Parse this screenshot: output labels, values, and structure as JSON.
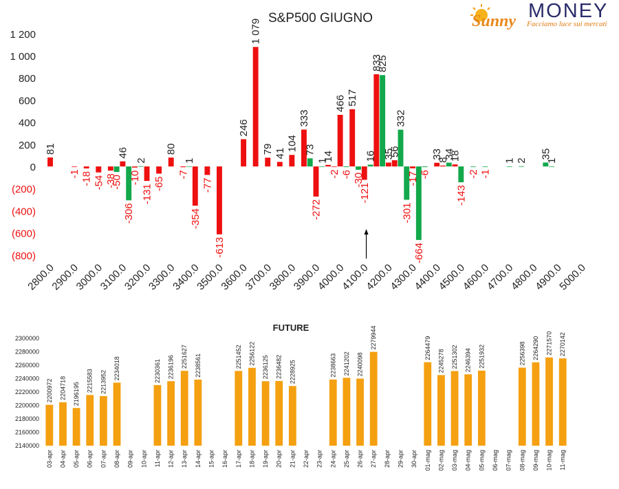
{
  "brand": {
    "logo_text": "Sunny",
    "name": "MONEY",
    "tagline": "Facciamo luce sui mercati"
  },
  "colors": {
    "call": "#ee1010",
    "put": "#12a84b",
    "future": "#f4a011",
    "text": "#222222",
    "negative_text": "#ee1010"
  },
  "chart_data": [
    {
      "type": "bar",
      "title": "S&P500 GIUGNO",
      "ylim": [
        -800,
        1200
      ],
      "yticks": [
        -800,
        -600,
        -400,
        -200,
        0,
        200,
        400,
        600,
        800,
        1000,
        1200
      ],
      "ytick_labels": [
        "(800)",
        "(600)",
        "(400)",
        "(200)",
        "0",
        "200",
        "400",
        "600",
        "800",
        "1 000",
        "1 200"
      ],
      "xticks": [
        "2800.0",
        "2900.0",
        "3000.0",
        "3100.0",
        "3200.0",
        "3300.0",
        "3400.0",
        "3500.0",
        "3600.0",
        "3700.0",
        "3800.0",
        "3900.0",
        "4000.0",
        "4100.0",
        "4200.0",
        "4300.0",
        "4400.0",
        "4500.0",
        "4600.0",
        "4700.0",
        "4800.0",
        "4900.0",
        "5000.0"
      ],
      "xlim": [
        2800,
        5000
      ],
      "bar_width": 25,
      "annotation": "arrow at 4125",
      "arrow_x": 4125,
      "series": [
        {
          "color": "#ee1010",
          "points": [
            {
              "x": 2800,
              "v": 81,
              "label": "81"
            },
            {
              "x": 2900,
              "v": -1,
              "label": "-1"
            },
            {
              "x": 2950,
              "v": -18,
              "label": "-18"
            },
            {
              "x": 3000,
              "v": -54,
              "label": "-54"
            },
            {
              "x": 3050,
              "v": -38,
              "label": "-38"
            },
            {
              "x": 3100,
              "v": 46,
              "label": "46"
            },
            {
              "x": 3150,
              "v": -10,
              "label": "-10"
            },
            {
              "x": 3200,
              "v": -131,
              "label": "-131"
            },
            {
              "x": 3250,
              "v": -65,
              "label": "-65"
            },
            {
              "x": 3300,
              "v": 80,
              "label": "80"
            },
            {
              "x": 3350,
              "v": -7,
              "label": "-7"
            },
            {
              "x": 3400,
              "v": -354,
              "label": "-354"
            },
            {
              "x": 3450,
              "v": -77,
              "label": "-77"
            },
            {
              "x": 3500,
              "v": -613,
              "label": "-613"
            },
            {
              "x": 3600,
              "v": 246,
              "label": "246"
            },
            {
              "x": 3650,
              "v": 1079,
              "label": "1 079"
            },
            {
              "x": 3700,
              "v": 79,
              "label": "79"
            },
            {
              "x": 3750,
              "v": 41,
              "label": "41"
            },
            {
              "x": 3800,
              "v": 104,
              "label": "104"
            },
            {
              "x": 3850,
              "v": 333,
              "label": "333"
            },
            {
              "x": 3900,
              "v": -272,
              "label": "-272"
            },
            {
              "x": 3950,
              "v": 14,
              "label": "14"
            },
            {
              "x": 3975,
              "v": -2,
              "label": "-2"
            },
            {
              "x": 4000,
              "v": 466,
              "label": "466"
            },
            {
              "x": 4050,
              "v": 517,
              "label": "517"
            },
            {
              "x": 4100,
              "v": -121,
              "label": "-121"
            },
            {
              "x": 4150,
              "v": 833,
              "label": "833"
            },
            {
              "x": 4200,
              "v": 35,
              "label": "35"
            },
            {
              "x": 4225,
              "v": 56,
              "label": "56"
            },
            {
              "x": 4300,
              "v": -17,
              "label": "-17"
            },
            {
              "x": 4400,
              "v": 33,
              "label": "33"
            },
            {
              "x": 4425,
              "v": 8,
              "label": "8"
            },
            {
              "x": 4475,
              "v": 18,
              "label": "18"
            }
          ]
        },
        {
          "color": "#12a84b",
          "points": [
            {
              "x": 3075,
              "v": -50,
              "label": "-50"
            },
            {
              "x": 3125,
              "v": -306,
              "label": "-306"
            },
            {
              "x": 3175,
              "v": 2,
              "label": "2"
            },
            {
              "x": 3375,
              "v": 1,
              "label": "1"
            },
            {
              "x": 3875,
              "v": 73,
              "label": "73"
            },
            {
              "x": 3925,
              "v": 1,
              "label": "1"
            },
            {
              "x": 4025,
              "v": -6,
              "label": "-6"
            },
            {
              "x": 4075,
              "v": -30,
              "label": "-30"
            },
            {
              "x": 4125,
              "v": 16,
              "label": "16"
            },
            {
              "x": 4175,
              "v": 825,
              "label": "825"
            },
            {
              "x": 4250,
              "v": 332,
              "label": "332"
            },
            {
              "x": 4275,
              "v": -301,
              "label": "-301"
            },
            {
              "x": 4325,
              "v": -664,
              "label": "-664"
            },
            {
              "x": 4350,
              "v": -6,
              "label": "-6"
            },
            {
              "x": 4450,
              "v": 34,
              "label": "34"
            },
            {
              "x": 4500,
              "v": -143,
              "label": "-143"
            },
            {
              "x": 4550,
              "v": -2,
              "label": "-2"
            },
            {
              "x": 4600,
              "v": -1,
              "label": "-1"
            },
            {
              "x": 4700,
              "v": 1,
              "label": "1"
            },
            {
              "x": 4750,
              "v": 2,
              "label": "2"
            },
            {
              "x": 4850,
              "v": 35,
              "label": "35"
            },
            {
              "x": 4875,
              "v": 1,
              "label": "1"
            }
          ]
        }
      ]
    },
    {
      "type": "bar",
      "title": "FUTURE",
      "ylim": [
        2140000,
        2300000
      ],
      "yticks": [
        2140000,
        2160000,
        2180000,
        2200000,
        2220000,
        2240000,
        2260000,
        2280000,
        2300000
      ],
      "categories": [
        "03-apr",
        "04-apr",
        "05-apr",
        "06-apr",
        "07-apr",
        "08-apr",
        "09-apr",
        "10-apr",
        "11-apr",
        "12-apr",
        "13-apr",
        "14-apr",
        "15-apr",
        "16-apr",
        "17-apr",
        "18-apr",
        "19-apr",
        "20-apr",
        "21-apr",
        "22-apr",
        "23-apr",
        "24-apr",
        "25-apr",
        "26-apr",
        "27-apr",
        "28-apr",
        "29-apr",
        "30-apr",
        "01-mag",
        "02-mag",
        "03-mag",
        "04-mag",
        "05-mag",
        "06-mag",
        "07-mag",
        "08-mag",
        "09-mag",
        "10-mag",
        "11-mag"
      ],
      "values": [
        2200972,
        2204718,
        2196195,
        2215583,
        2213952,
        2234018,
        null,
        null,
        2230361,
        2236196,
        2251627,
        2238561,
        null,
        null,
        2251452,
        2256122,
        2236125,
        2236482,
        2228925,
        null,
        null,
        2238663,
        2241202,
        2240098,
        2279944,
        null,
        null,
        null,
        2264479,
        2245278,
        2251302,
        2246394,
        2251932,
        null,
        null,
        2256398,
        2264290,
        2271570,
        2270142
      ],
      "color": "#f4a011"
    }
  ]
}
